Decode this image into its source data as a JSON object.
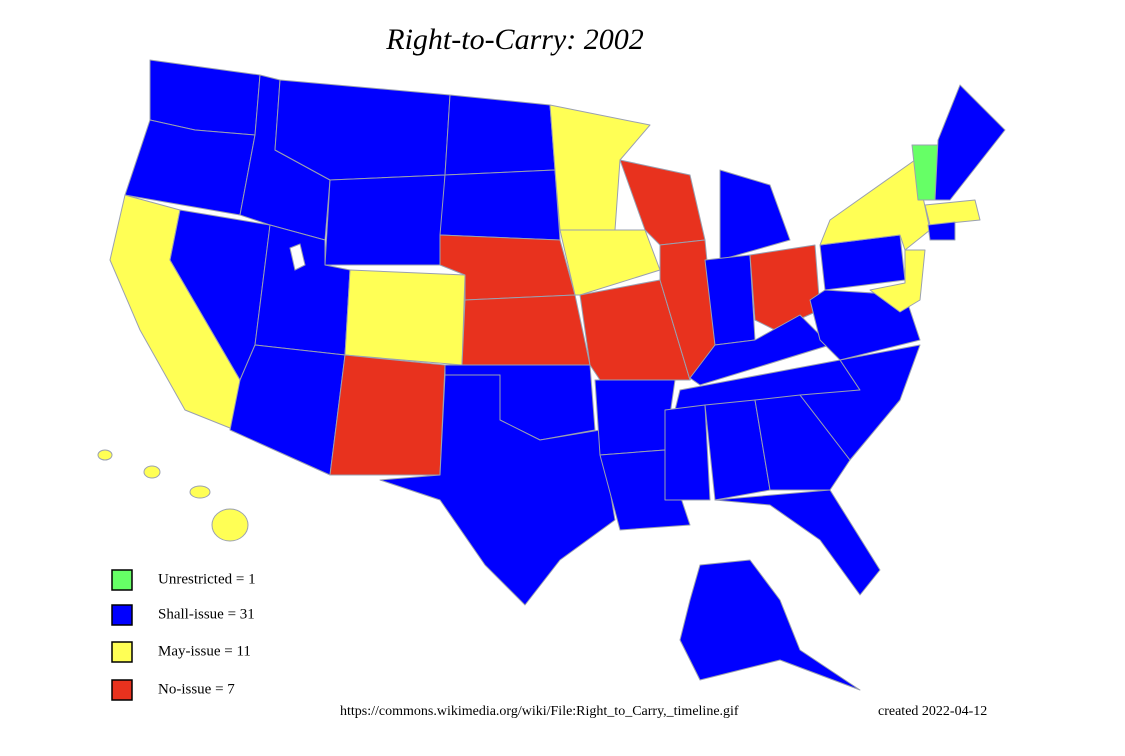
{
  "title": "Right-to-Carry: 2002",
  "legend": [
    {
      "label": "Unrestricted = 1",
      "color": "#66ff66"
    },
    {
      "label": "Shall-issue = 31",
      "color": "#0000ff"
    },
    {
      "label": "May-issue = 11",
      "color": "#ffff55"
    },
    {
      "label": "No-issue = 7",
      "color": "#e8321e"
    }
  ],
  "source": "https://commons.wikimedia.org/wiki/File:Right_to_Carry,_timeline.gif",
  "created": "created 2022-04-12"
}
